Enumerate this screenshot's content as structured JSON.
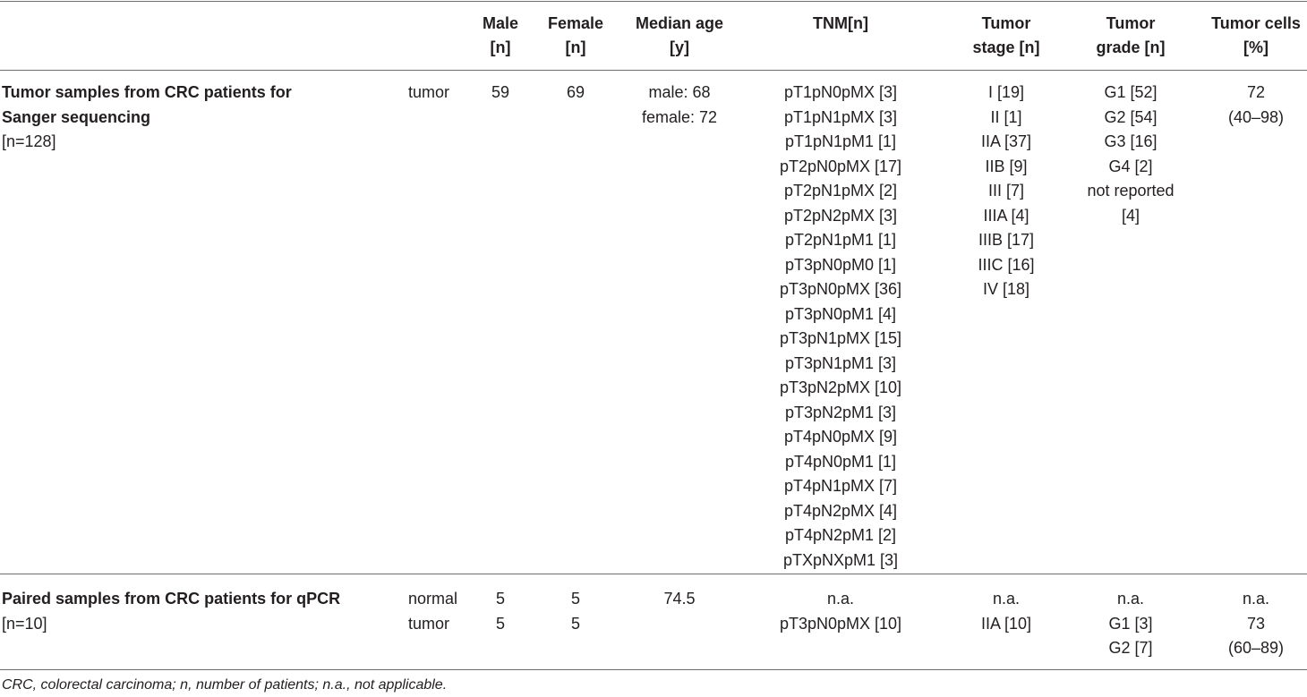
{
  "columns": {
    "male": [
      "Male",
      "[n]"
    ],
    "female": [
      "Female",
      "[n]"
    ],
    "median_age": [
      "Median age",
      "[y]"
    ],
    "tnm": [
      "TNM[n]"
    ],
    "tumor_stage": [
      "Tumor",
      "stage [n]"
    ],
    "tumor_grade": [
      "Tumor",
      "grade [n]"
    ],
    "tumor_cells": [
      "Tumor cells",
      "[%]"
    ]
  },
  "groups": [
    {
      "title_lines": [
        "Tumor samples from CRC patients for",
        "Sanger sequencing"
      ],
      "n": "[n=128]",
      "sample": [
        "tumor"
      ],
      "male": [
        "59"
      ],
      "female": [
        "69"
      ],
      "median_age": [
        "male: 68",
        "female: 72"
      ],
      "tnm": [
        "pT1pN0pMX [3]",
        "pT1pN1pMX [3]",
        "pT1pN1pM1 [1]",
        "pT2pN0pMX [17]",
        "pT2pN1pMX [2]",
        "pT2pN2pMX [3]",
        "pT2pN1pM1 [1]",
        "pT3pN0pM0 [1]",
        "pT3pN0pMX [36]",
        "pT3pN0pM1 [4]",
        "pT3pN1pMX [15]",
        "pT3pN1pM1 [3]",
        "pT3pN2pMX [10]",
        "pT3pN2pM1 [3]",
        "pT4pN0pMX [9]",
        "pT4pN0pM1 [1]",
        "pT4pN1pMX [7]",
        "pT4pN2pMX [4]",
        "pT4pN2pM1 [2]",
        "pTXpNXpM1 [3]"
      ],
      "tumor_stage": [
        "I [19]",
        "II [1]",
        "IIA [37]",
        "IIB [9]",
        "III [7]",
        "IIIA [4]",
        "IIIB [17]",
        "IIIC [16]",
        "IV [18]"
      ],
      "tumor_grade": [
        "G1 [52]",
        "G2 [54]",
        "G3 [16]",
        "G4 [2]",
        "not reported",
        "[4]"
      ],
      "tumor_cells": [
        "72",
        "(40–98)"
      ]
    },
    {
      "title_lines": [
        "Paired samples from CRC patients for qPCR"
      ],
      "n": "[n=10]",
      "sample": [
        "normal",
        "tumor"
      ],
      "male": [
        "5",
        "5"
      ],
      "female": [
        "5",
        "5"
      ],
      "median_age": [
        "74.5"
      ],
      "tnm": [
        "n.a.",
        "pT3pN0pMX [10]"
      ],
      "tumor_stage": [
        "n.a.",
        "IIA [10]"
      ],
      "tumor_grade": [
        "n.a.",
        "G1 [3]",
        "G2 [7]"
      ],
      "tumor_cells": [
        "n.a.",
        "73",
        "(60–89)"
      ]
    }
  ],
  "footnote": "CRC, colorectal carcinoma; n, number of patients; n.a., not applicable."
}
